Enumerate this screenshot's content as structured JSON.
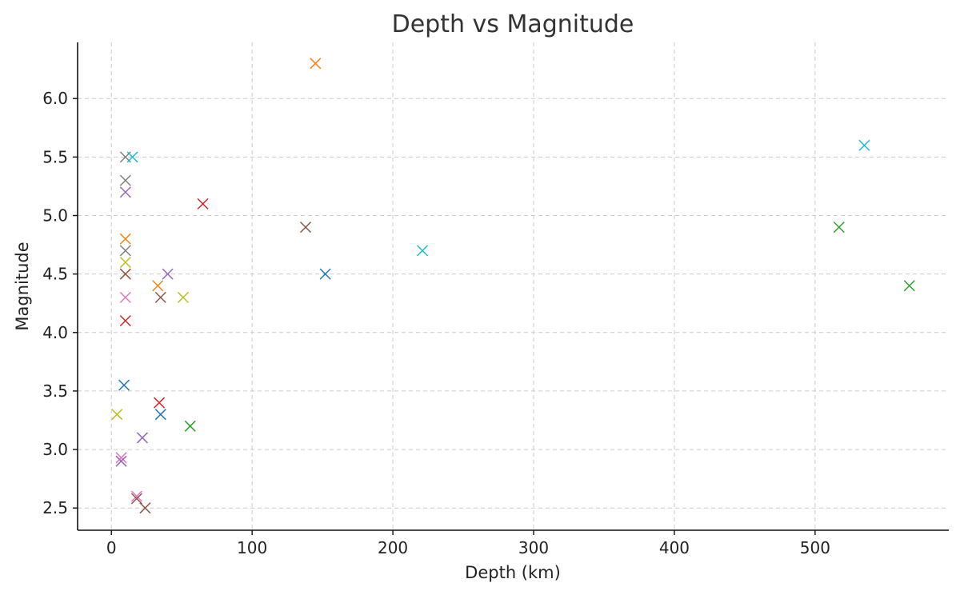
{
  "chart_data": {
    "type": "scatter",
    "title": "Depth vs Magnitude",
    "xlabel": "Depth (km)",
    "ylabel": "Magnitude",
    "xlim": [
      -24,
      595
    ],
    "ylim": [
      2.31,
      6.48
    ],
    "xticks": [
      0,
      100,
      200,
      300,
      400,
      500
    ],
    "yticks": [
      2.5,
      3.0,
      3.5,
      4.0,
      4.5,
      5.0,
      5.5,
      6.0
    ],
    "grid": true,
    "marker": "x",
    "points": [
      {
        "x": 145,
        "y": 6.3,
        "color": "#ff7f0e"
      },
      {
        "x": 535,
        "y": 5.6,
        "color": "#17becf"
      },
      {
        "x": 10,
        "y": 5.5,
        "color": "#7f7f7f"
      },
      {
        "x": 15,
        "y": 5.5,
        "color": "#17becf"
      },
      {
        "x": 10,
        "y": 5.3,
        "color": "#7f7f7f"
      },
      {
        "x": 10,
        "y": 5.2,
        "color": "#9467bd"
      },
      {
        "x": 65,
        "y": 5.1,
        "color": "#d62728"
      },
      {
        "x": 138,
        "y": 4.9,
        "color": "#8c564b"
      },
      {
        "x": 517,
        "y": 4.9,
        "color": "#2ca02c"
      },
      {
        "x": 10,
        "y": 4.8,
        "color": "#ff7f0e"
      },
      {
        "x": 10,
        "y": 4.7,
        "color": "#7f7f7f"
      },
      {
        "x": 221,
        "y": 4.7,
        "color": "#17becf"
      },
      {
        "x": 10,
        "y": 4.6,
        "color": "#bcbd22"
      },
      {
        "x": 10,
        "y": 4.5,
        "color": "#ff7f0e"
      },
      {
        "x": 10,
        "y": 4.5,
        "color": "#8c564b"
      },
      {
        "x": 40,
        "y": 4.5,
        "color": "#9467bd"
      },
      {
        "x": 152,
        "y": 4.5,
        "color": "#1f77b4"
      },
      {
        "x": 33,
        "y": 4.4,
        "color": "#ff7f0e"
      },
      {
        "x": 567,
        "y": 4.4,
        "color": "#2ca02c"
      },
      {
        "x": 10,
        "y": 4.3,
        "color": "#e377c2"
      },
      {
        "x": 35,
        "y": 4.3,
        "color": "#8c564b"
      },
      {
        "x": 51,
        "y": 4.3,
        "color": "#bcbd22"
      },
      {
        "x": 10,
        "y": 4.1,
        "color": "#d62728"
      },
      {
        "x": 9,
        "y": 3.55,
        "color": "#1f77b4"
      },
      {
        "x": 34,
        "y": 3.4,
        "color": "#d62728"
      },
      {
        "x": 4,
        "y": 3.3,
        "color": "#bcbd22"
      },
      {
        "x": 35,
        "y": 3.3,
        "color": "#1f77b4"
      },
      {
        "x": 56,
        "y": 3.2,
        "color": "#2ca02c"
      },
      {
        "x": 22,
        "y": 3.1,
        "color": "#9467bd"
      },
      {
        "x": 7,
        "y": 2.93,
        "color": "#e377c2"
      },
      {
        "x": 7,
        "y": 2.9,
        "color": "#9467bd"
      },
      {
        "x": 18,
        "y": 2.6,
        "color": "#e377c2"
      },
      {
        "x": 18,
        "y": 2.58,
        "color": "#8c564b"
      },
      {
        "x": 24,
        "y": 2.5,
        "color": "#8c564b"
      }
    ]
  }
}
